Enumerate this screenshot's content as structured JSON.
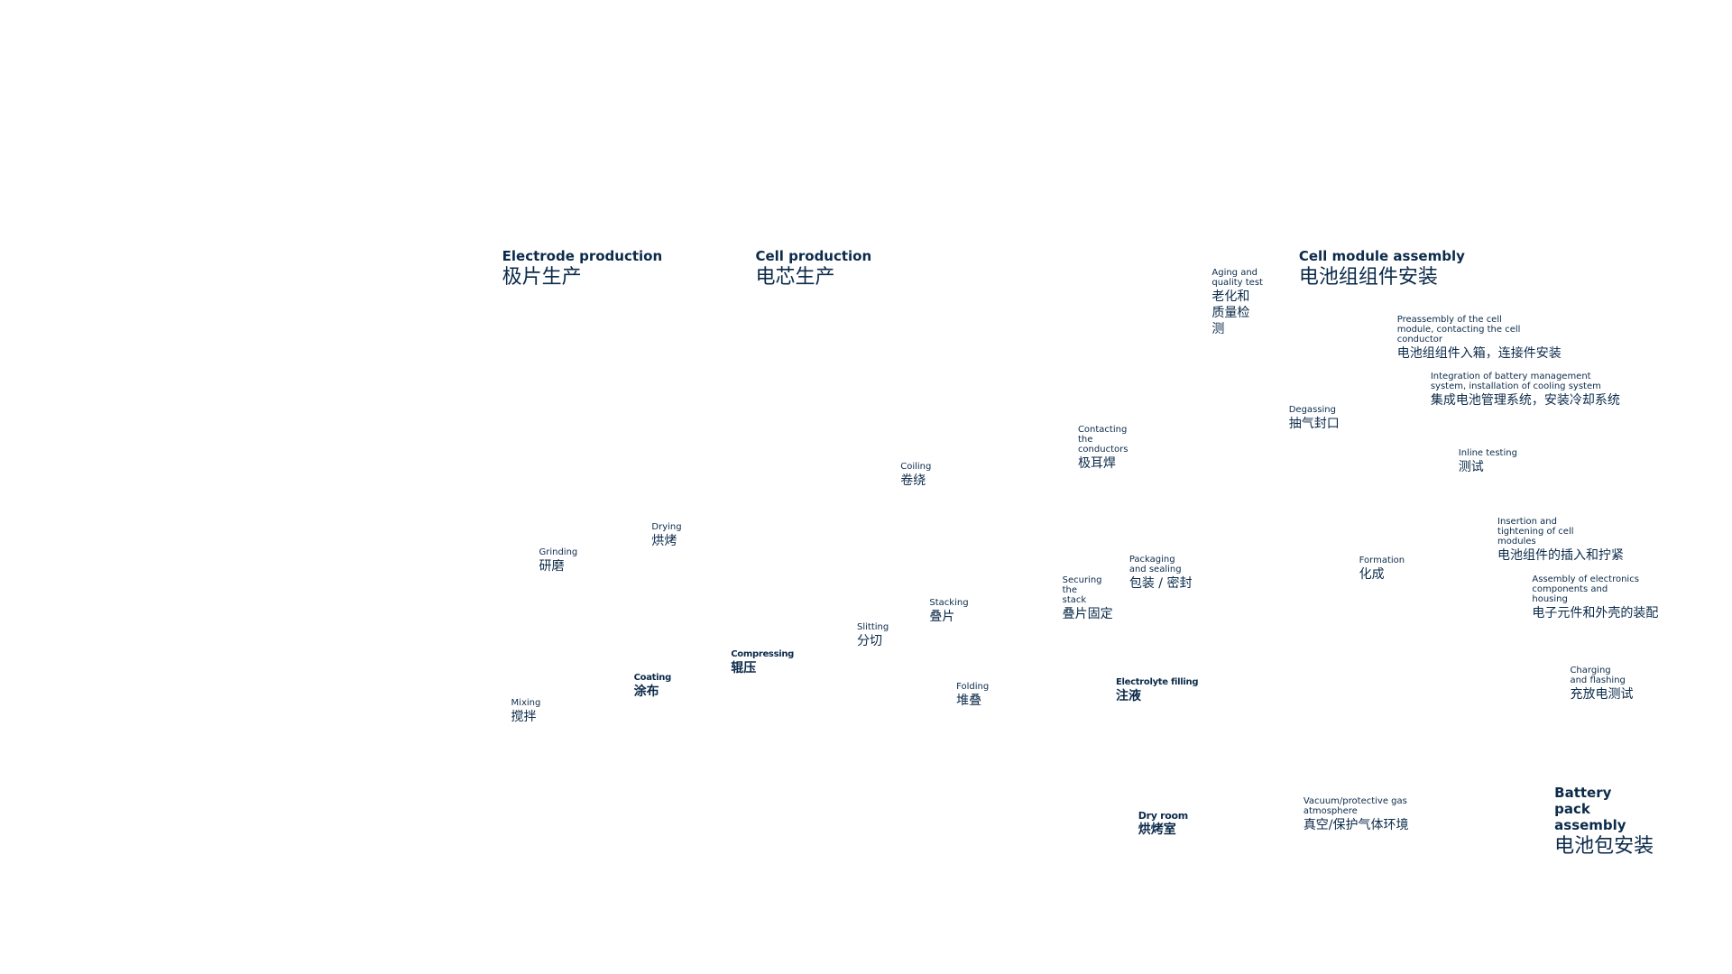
{
  "sections": [
    {
      "en": "Electrode production",
      "zh": "极片生产"
    },
    {
      "en": "Cell production",
      "zh": "电芯生产"
    },
    {
      "en": "Cell module assembly",
      "zh": "电池组组件安装"
    },
    {
      "en": "Battery pack assembly",
      "zh": "电池包安装"
    }
  ],
  "steps": [
    {
      "en": "Aging and quality test",
      "zh": "老化和质量检测"
    },
    {
      "en": "Preassembly of the cell module, contacting the cell conductor",
      "zh": "电池组组件入箱，连接件安装"
    },
    {
      "en": "Integration of battery management system, installation of cooling system",
      "zh": "集成电池管理系统，安装冷却系统"
    },
    {
      "en": "Degassing",
      "zh": "抽气封口"
    },
    {
      "en": "Contacting the conductors",
      "zh": "极耳焊"
    },
    {
      "en": "Inline testing",
      "zh": "测试"
    },
    {
      "en": "Coiling",
      "zh": "卷绕"
    },
    {
      "en": "Insertion and tightening of cell modules",
      "zh": "电池组件的插入和拧紧"
    },
    {
      "en": "Drying",
      "zh": "烘烤"
    },
    {
      "en": "Grinding",
      "zh": "研磨"
    },
    {
      "en": "Packaging and sealing",
      "zh": "包装 / 密封"
    },
    {
      "en": "Formation",
      "zh": "化成"
    },
    {
      "en": "Securing the stack",
      "zh": "叠片固定"
    },
    {
      "en": "Assembly of electronics components and housing",
      "zh": "电子元件和外壳的装配"
    },
    {
      "en": "Stacking",
      "zh": "叠片"
    },
    {
      "en": "Slitting",
      "zh": "分切"
    },
    {
      "en": "Compressing",
      "zh": "辊压"
    },
    {
      "en": "Coating",
      "zh": "涂布"
    },
    {
      "en": "Charging and flashing",
      "zh": "充放电测试"
    },
    {
      "en": "Electrolyte filling",
      "zh": "注液"
    },
    {
      "en": "Folding",
      "zh": "堆叠"
    },
    {
      "en": "Mixing",
      "zh": "搅拌"
    },
    {
      "en": "Dry room",
      "zh": "烘烤室"
    },
    {
      "en": "Vacuum/protective gas atmosphere",
      "zh": "真空/保护气体环境"
    }
  ]
}
